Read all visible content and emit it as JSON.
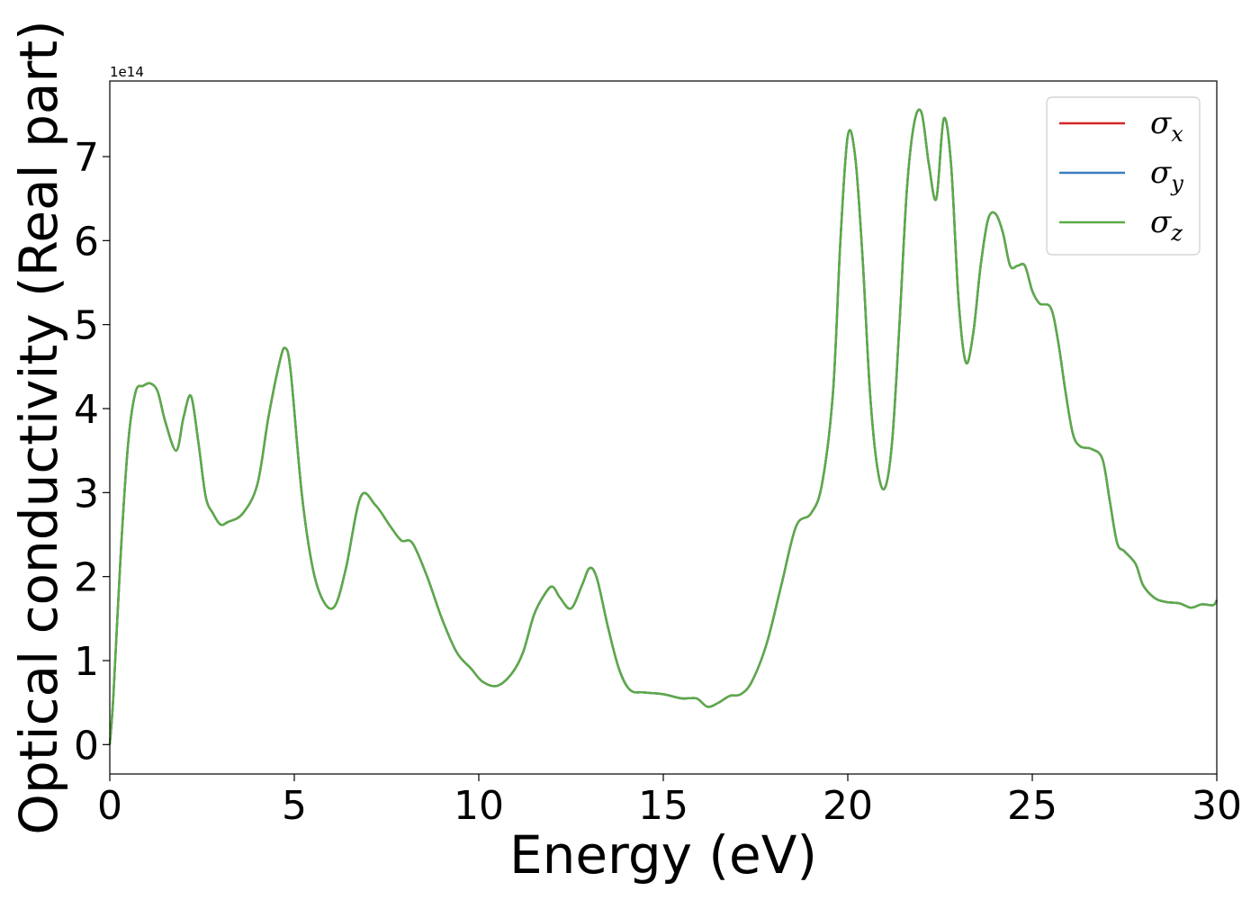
{
  "chart_data": {
    "type": "line",
    "title": "",
    "xlabel": "Energy (eV)",
    "ylabel": "Optical conductivity (Real part)",
    "y_offset_label": "1e14",
    "xlim": [
      0,
      30
    ],
    "ylim": [
      -0.35,
      7.9
    ],
    "x_ticks": [
      0,
      5,
      10,
      15,
      20,
      25,
      30
    ],
    "y_ticks": [
      0,
      1,
      2,
      3,
      4,
      5,
      6,
      7
    ],
    "grid": false,
    "legend_position": "top-right",
    "series": [
      {
        "name": "σ",
        "subscript": "x",
        "color": "#d62728"
      },
      {
        "name": "σ",
        "subscript": "y",
        "color": "#3b7dbf"
      },
      {
        "name": "σ",
        "subscript": "z",
        "color": "#5aab46"
      }
    ],
    "x": [
      0,
      0.1,
      0.3,
      0.5,
      0.7,
      0.9,
      1.1,
      1.3,
      1.5,
      1.8,
      2.0,
      2.2,
      2.4,
      2.6,
      2.8,
      3.0,
      3.2,
      3.6,
      4.0,
      4.3,
      4.6,
      4.75,
      4.9,
      5.2,
      5.5,
      5.8,
      6.1,
      6.4,
      6.8,
      7.2,
      7.6,
      7.9,
      8.2,
      8.6,
      9.0,
      9.4,
      9.8,
      10.1,
      10.5,
      10.9,
      11.2,
      11.5,
      11.8,
      12.0,
      12.2,
      12.5,
      12.8,
      13.0,
      13.2,
      13.5,
      13.8,
      14.1,
      14.5,
      15.0,
      15.5,
      15.9,
      16.2,
      16.5,
      16.8,
      17.1,
      17.4,
      17.8,
      18.2,
      18.6,
      19.0,
      19.3,
      19.6,
      19.8,
      20.0,
      20.2,
      20.4,
      20.6,
      20.8,
      21.0,
      21.2,
      21.4,
      21.6,
      21.8,
      22.0,
      22.2,
      22.4,
      22.6,
      22.8,
      23.0,
      23.2,
      23.4,
      23.6,
      23.8,
      24.0,
      24.2,
      24.4,
      24.6,
      24.8,
      25.0,
      25.2,
      25.5,
      25.7,
      25.9,
      26.1,
      26.3,
      26.6,
      26.9,
      27.1,
      27.3,
      27.5,
      27.8,
      28.0,
      28.3,
      28.6,
      29.0,
      29.3,
      29.6,
      29.9,
      30.0
    ],
    "values": [
      0,
      0.6,
      2.3,
      3.6,
      4.2,
      4.27,
      4.3,
      4.2,
      3.85,
      3.5,
      3.9,
      4.15,
      3.6,
      2.95,
      2.75,
      2.62,
      2.65,
      2.75,
      3.1,
      3.9,
      4.55,
      4.72,
      4.45,
      3.0,
      2.1,
      1.7,
      1.65,
      2.1,
      2.95,
      2.85,
      2.6,
      2.43,
      2.4,
      2.0,
      1.5,
      1.1,
      0.9,
      0.75,
      0.7,
      0.85,
      1.1,
      1.55,
      1.8,
      1.88,
      1.75,
      1.62,
      1.9,
      2.1,
      1.98,
      1.4,
      0.9,
      0.65,
      0.62,
      0.6,
      0.55,
      0.55,
      0.45,
      0.5,
      0.58,
      0.6,
      0.75,
      1.2,
      1.9,
      2.6,
      2.75,
      3.1,
      4.2,
      6.0,
      7.25,
      7.0,
      5.8,
      4.2,
      3.3,
      3.05,
      3.6,
      5.0,
      6.6,
      7.4,
      7.52,
      6.9,
      6.5,
      7.45,
      6.9,
      5.3,
      4.55,
      4.9,
      5.7,
      6.25,
      6.32,
      6.1,
      5.7,
      5.7,
      5.7,
      5.4,
      5.25,
      5.2,
      4.8,
      4.2,
      3.7,
      3.55,
      3.52,
      3.4,
      2.9,
      2.4,
      2.3,
      2.15,
      1.9,
      1.75,
      1.7,
      1.68,
      1.63,
      1.67,
      1.66,
      1.72
    ]
  }
}
